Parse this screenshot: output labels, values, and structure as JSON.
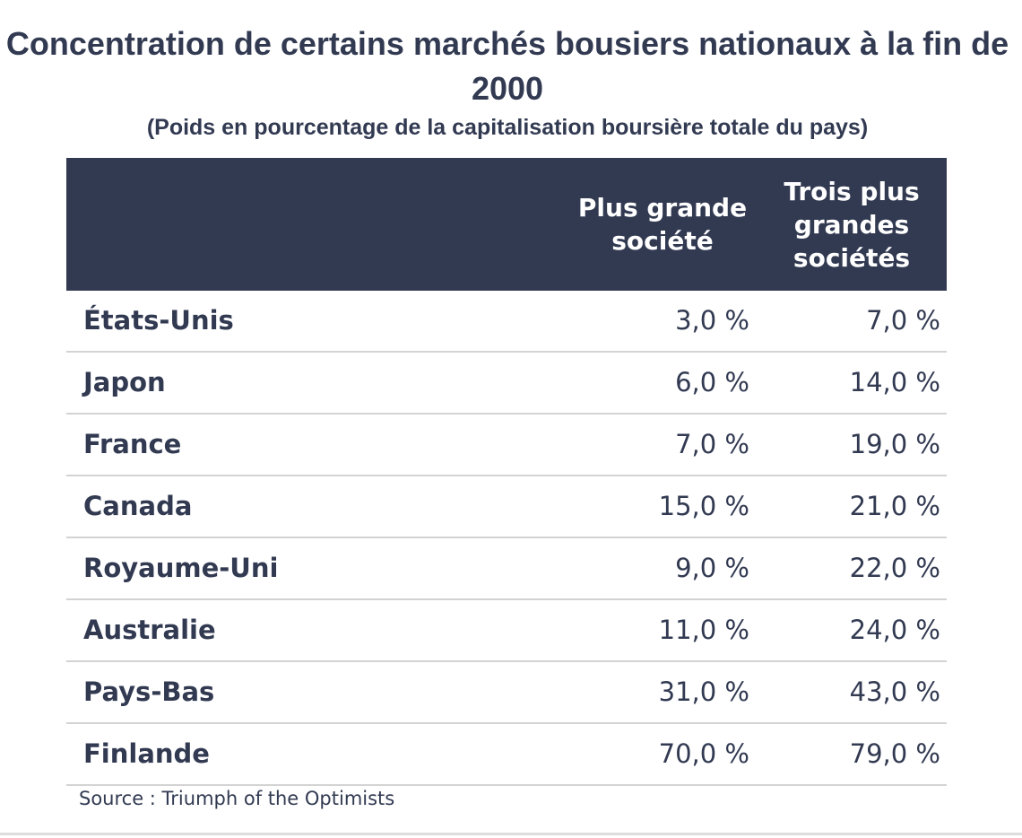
{
  "chart_data": {
    "type": "table",
    "title": "Concentration de certains marchés bousiers nationaux à la fin de 2000",
    "subtitle": "(Poids en pourcentage de la capitalisation boursière totale du pays)",
    "columns": [
      "",
      "Plus grande\nsociété",
      "Trois plus\ngrandes\nsociétés"
    ],
    "rows": [
      {
        "country": "États-Unis",
        "largest": "3,0 %",
        "top3": "7,0 %"
      },
      {
        "country": "Japon",
        "largest": "6,0 %",
        "top3": "14,0 %"
      },
      {
        "country": "France",
        "largest": "7,0 %",
        "top3": "19,0 %"
      },
      {
        "country": "Canada",
        "largest": "15,0 %",
        "top3": "21,0 %"
      },
      {
        "country": "Royaume-Uni",
        "largest": "9,0 %",
        "top3": "22,0 %"
      },
      {
        "country": "Australie",
        "largest": "11,0 %",
        "top3": "24,0 %"
      },
      {
        "country": "Pays-Bas",
        "largest": "31,0 %",
        "top3": "43,0 %"
      },
      {
        "country": "Finlande",
        "largest": "70,0 %",
        "top3": "79,0 %"
      }
    ],
    "source": "Source : Triumph of the Optimists"
  },
  "colors": {
    "header_bg": "#323a52",
    "header_text": "#ffffff",
    "body_text": "#323a52",
    "row_divider": "#d3d3d3"
  }
}
